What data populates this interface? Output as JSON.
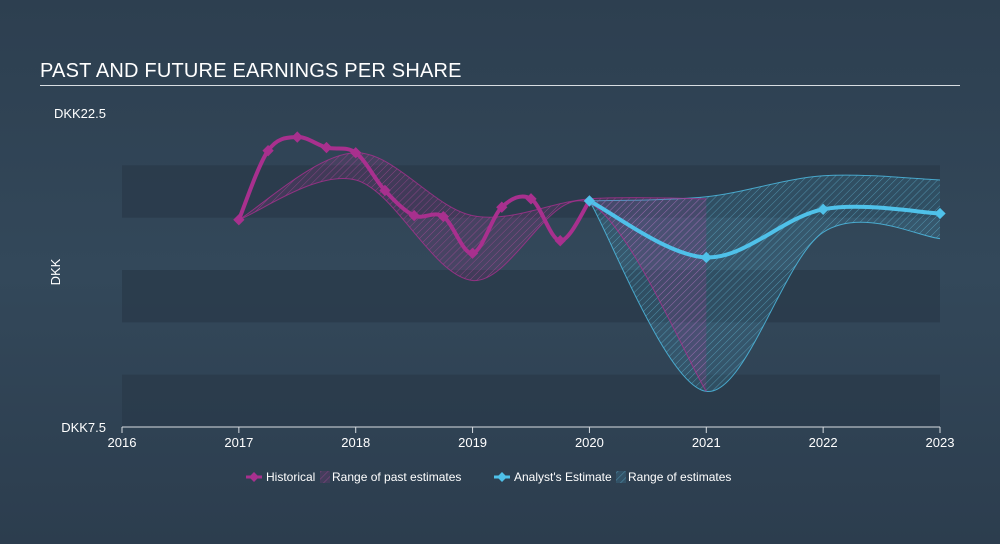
{
  "chart_data": {
    "type": "line",
    "title": "PAST AND FUTURE EARNINGS PER SHARE",
    "ylabel": "DKK",
    "ylim": [
      7.5,
      22.5
    ],
    "xlim": [
      2016,
      2023.0
    ],
    "y_tick_labels": [
      {
        "value": 22.5,
        "label": "DKK22.5"
      },
      {
        "value": 7.5,
        "label": "DKK7.5"
      }
    ],
    "x_ticks": [
      2016,
      2017,
      2018,
      2019,
      2020,
      2021,
      2022,
      2023
    ],
    "bands": [
      [
        7.5,
        10
      ],
      [
        12.5,
        15
      ],
      [
        17.5,
        20
      ]
    ],
    "series": [
      {
        "name": "Historical",
        "color": "#a8308e",
        "points": [
          [
            2017.0,
            17.4
          ],
          [
            2017.25,
            20.7
          ],
          [
            2017.5,
            21.35
          ],
          [
            2017.75,
            20.85
          ],
          [
            2018.0,
            20.6
          ],
          [
            2018.25,
            18.8
          ],
          [
            2018.5,
            17.6
          ],
          [
            2018.75,
            17.55
          ],
          [
            2019.0,
            15.8
          ],
          [
            2019.25,
            18.0
          ],
          [
            2019.5,
            18.4
          ],
          [
            2019.75,
            16.4
          ],
          [
            2020.0,
            18.3
          ]
        ]
      },
      {
        "name": "Analyst's Estimate",
        "color": "#4fc1e9",
        "points": [
          [
            2020.0,
            18.3
          ],
          [
            2021.0,
            15.6
          ],
          [
            2022.0,
            17.9
          ],
          [
            2023.0,
            17.7
          ]
        ]
      }
    ],
    "past_range": {
      "name": "Range of past estimates",
      "color": "#a8308e",
      "upper": [
        [
          2017.0,
          17.4
        ],
        [
          2018.0,
          20.6
        ],
        [
          2019.0,
          17.6
        ],
        [
          2020.0,
          18.4
        ],
        [
          2021.0,
          18.4
        ]
      ],
      "lower": [
        [
          2017.0,
          17.4
        ],
        [
          2018.0,
          19.3
        ],
        [
          2019.0,
          14.5
        ],
        [
          2020.0,
          18.2
        ],
        [
          2021.0,
          9.2
        ]
      ]
    },
    "future_range": {
      "name": "Range of estimates",
      "color": "#4fc1e9",
      "upper": [
        [
          2020.0,
          18.3
        ],
        [
          2021.0,
          18.5
        ],
        [
          2022.0,
          19.5
        ],
        [
          2023.0,
          19.3
        ]
      ],
      "lower": [
        [
          2020.0,
          18.3
        ],
        [
          2021.0,
          9.2
        ],
        [
          2022.0,
          16.8
        ],
        [
          2023.0,
          16.5
        ]
      ]
    }
  }
}
